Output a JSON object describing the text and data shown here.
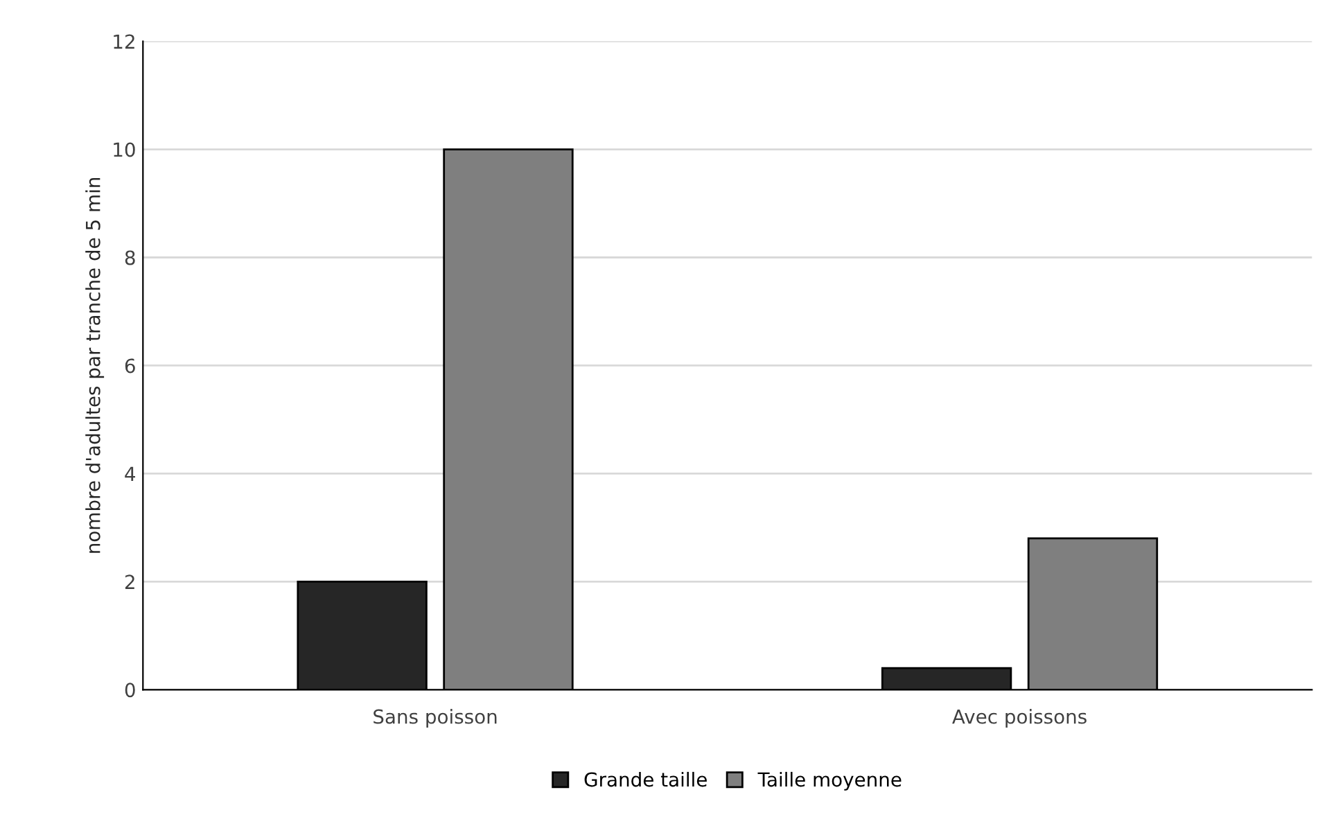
{
  "chart_data": {
    "type": "bar",
    "ylabel": "nombre d'adultes par tranche de 5 min",
    "categories": [
      "Sans poisson",
      "Avec poissons"
    ],
    "series": [
      {
        "name": "Grande taille",
        "color": "#262626",
        "values": [
          2,
          0.4
        ]
      },
      {
        "name": "Taille moyenne",
        "color": "#7f7f7f",
        "values": [
          10,
          2.8
        ]
      }
    ],
    "ylim": [
      0,
      12
    ],
    "yticks": [
      0,
      2,
      4,
      6,
      8,
      10,
      12
    ],
    "grid": "y",
    "legend": "bottom"
  }
}
